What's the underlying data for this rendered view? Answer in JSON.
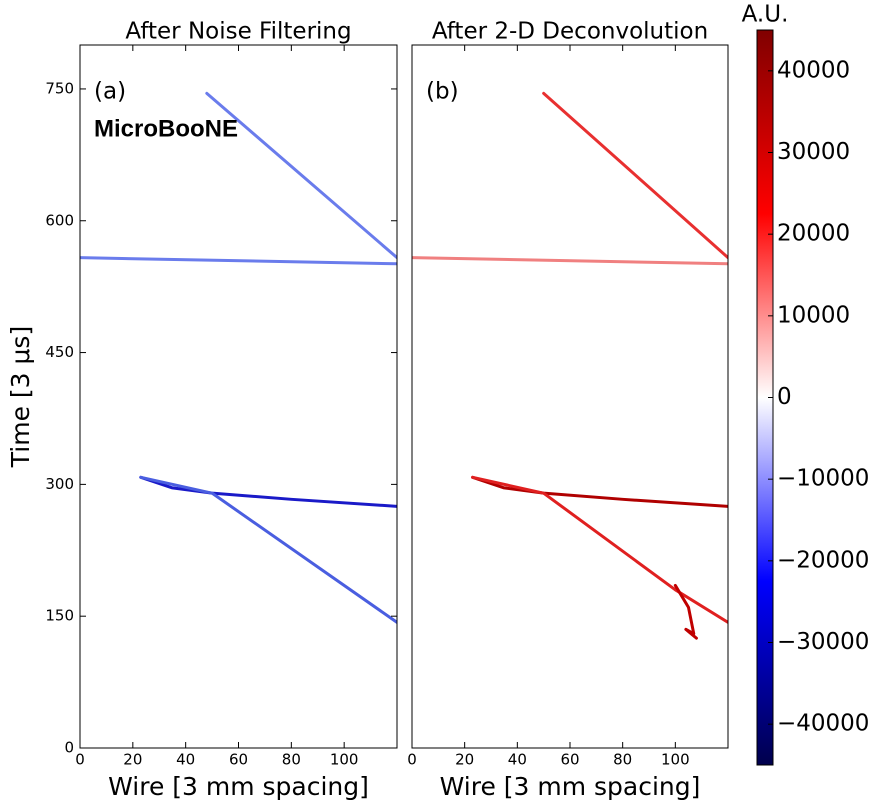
{
  "chart_data": [
    {
      "type": "line",
      "title": "After Noise Filtering",
      "panel_label": "(a)",
      "annotation": "MicroBooNE",
      "x_label": "Wire [3 mm spacing]",
      "y_label": "Time [3 μs]",
      "xlim": [
        0,
        120
      ],
      "ylim": [
        0,
        800
      ],
      "xticks": [
        0,
        20,
        40,
        60,
        80,
        100
      ],
      "yticks": [
        0,
        150,
        300,
        450,
        600,
        750
      ],
      "series": [
        {
          "color": "#6a7cec",
          "x": [
            48,
            120
          ],
          "values": [
            745,
            558
          ]
        },
        {
          "color": "#6a7cec",
          "x": [
            0,
            120
          ],
          "values": [
            558,
            551
          ]
        },
        {
          "color": "#1a1ac8",
          "x": [
            23,
            35,
            50,
            80,
            120
          ],
          "values": [
            308,
            296,
            290,
            283,
            275
          ]
        },
        {
          "color": "#4a5ee0",
          "x": [
            23,
            50,
            120
          ],
          "values": [
            308,
            290,
            143
          ]
        }
      ]
    },
    {
      "type": "line",
      "title": "After 2-D Deconvolution",
      "panel_label": "(b)",
      "x_label": "Wire [3 mm spacing]",
      "xlim": [
        0,
        120
      ],
      "ylim": [
        0,
        800
      ],
      "xticks": [
        0,
        20,
        40,
        60,
        80,
        100
      ],
      "series": [
        {
          "color": "#e83030",
          "x": [
            50,
            120
          ],
          "values": [
            745,
            558
          ]
        },
        {
          "color": "#f08080",
          "x": [
            0,
            120
          ],
          "values": [
            558,
            551
          ]
        },
        {
          "color": "#b00000",
          "x": [
            23,
            35,
            50,
            80,
            120
          ],
          "values": [
            308,
            296,
            290,
            283,
            275
          ]
        },
        {
          "color": "#e02020",
          "x": [
            23,
            50,
            100,
            120
          ],
          "values": [
            308,
            290,
            180,
            143
          ]
        },
        {
          "color": "#c00000",
          "x": [
            100,
            105,
            107,
            104,
            108
          ],
          "values": [
            185,
            160,
            130,
            135,
            125
          ]
        }
      ]
    },
    {
      "type": "colorbar",
      "label": "A.U.",
      "lim": [
        -45000,
        45000
      ],
      "colors": [
        "#00004c",
        "#0000ff",
        "#ffffff",
        "#ff0000",
        "#800000"
      ],
      "ticks": [
        {
          "value": -40000,
          "label": "−40000"
        },
        {
          "value": -30000,
          "label": "−30000"
        },
        {
          "value": -20000,
          "label": "−20000"
        },
        {
          "value": -10000,
          "label": "−10000"
        },
        0,
        10000,
        20000,
        30000,
        40000
      ]
    }
  ]
}
